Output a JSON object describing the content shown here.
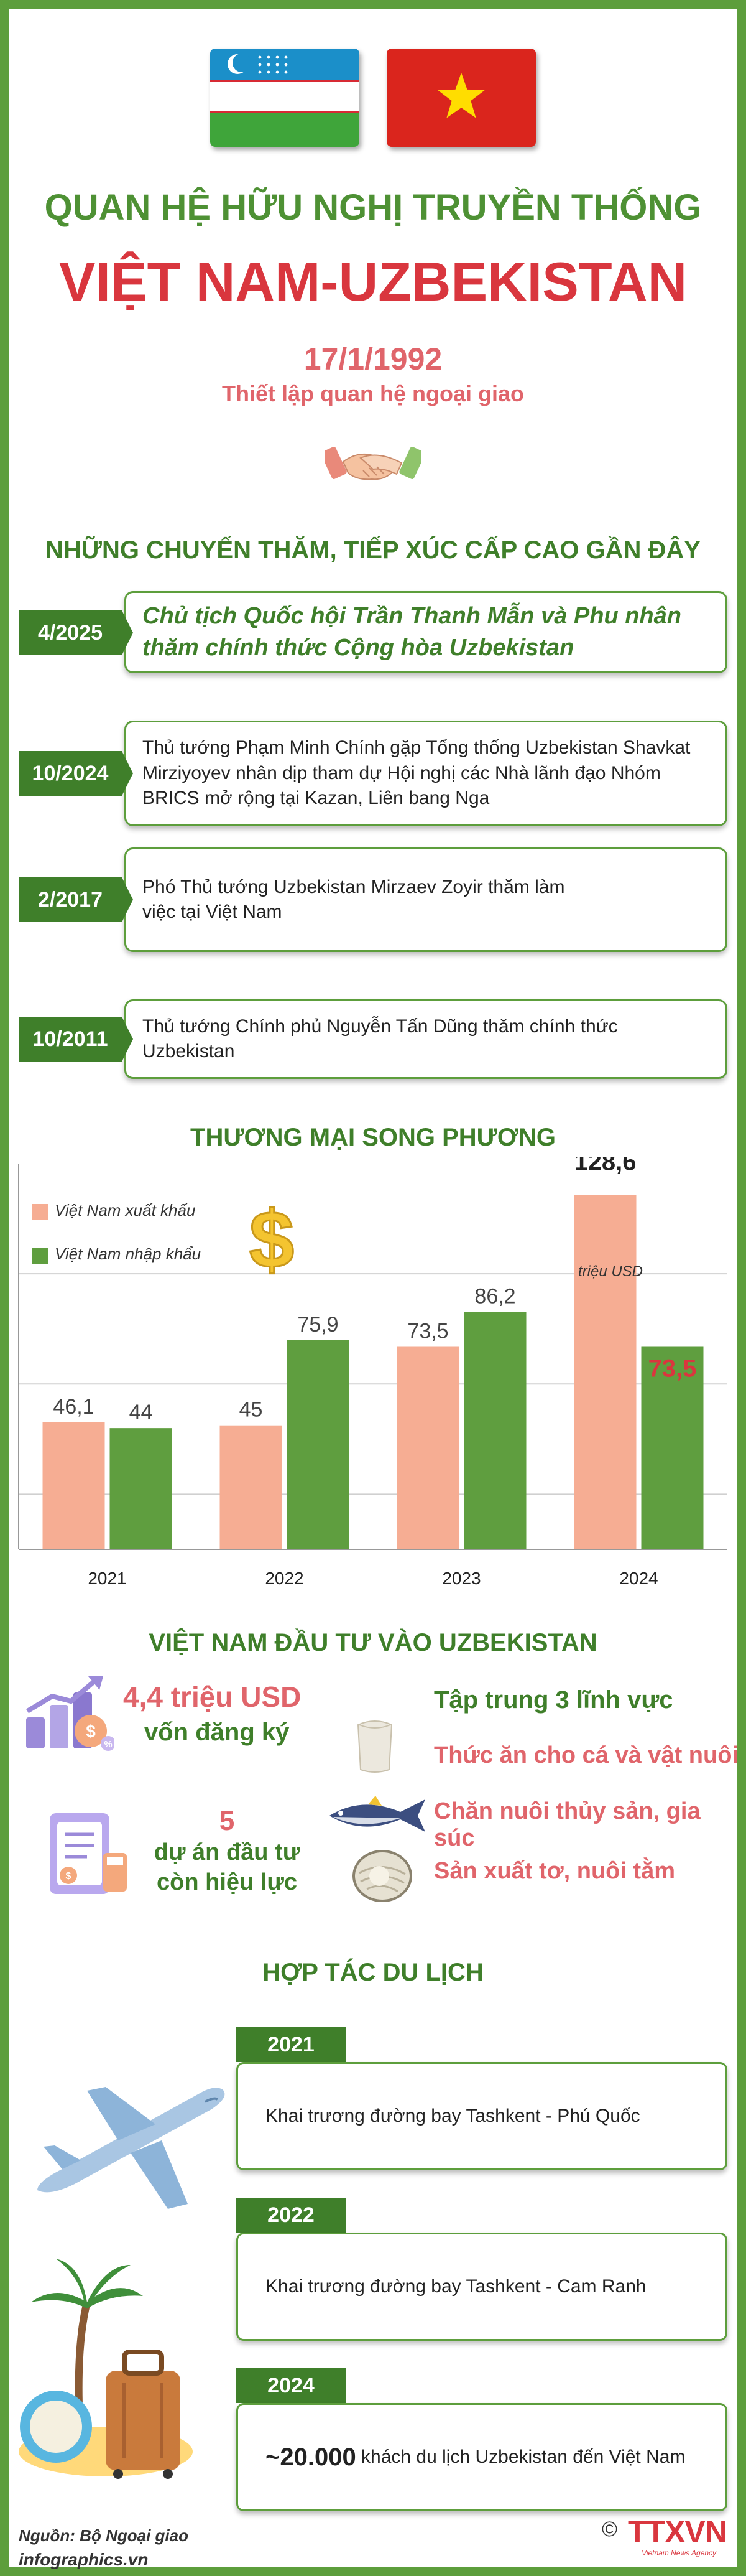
{
  "header": {
    "title_line1": "QUAN HỆ HỮU NGHỊ TRUYỀN THỐNG",
    "title_line2": "VIỆT NAM-UZBEKISTAN",
    "date": "17/1/1992",
    "subtitle": "Thiết lập quan hệ ngoại giao",
    "flags": [
      "uzbekistan-flag",
      "vietnam-flag"
    ]
  },
  "visits": {
    "title": "NHỮNG CHUYẾN THĂM, TIẾP XÚC CẤP CAO GẦN ĐÂY",
    "items": [
      {
        "date": "4/2025",
        "text": "Chủ tịch Quốc hội Trần Thanh Mẫn và Phu nhân thăm chính thức Cộng hòa Uzbekistan"
      },
      {
        "date": "10/2024",
        "text": "Thủ tướng Phạm Minh Chính gặp Tổng thống Uzbekistan Shavkat Mirziyoyev nhân dịp tham dự Hội nghị các Nhà lãnh đạo Nhóm BRICS mở rộng tại Kazan, Liên bang Nga"
      },
      {
        "date": "2/2017",
        "text": "Phó Thủ tướng Uzbekistan Mirzaev Zoyir  thăm làm việc tại Việt Nam"
      },
      {
        "date": "10/2011",
        "text": "Thủ tướng Chính phủ Nguyễn Tấn Dũng  thăm chính thức Uzbekistan"
      }
    ]
  },
  "trade": {
    "title": "THƯƠNG MẠI SONG PHƯƠNG",
    "unit": "triệu USD"
  },
  "chart_data": {
    "type": "bar",
    "title": "THƯƠNG MẠI SONG PHƯƠNG",
    "categories": [
      "2021",
      "2022",
      "2023",
      "2024"
    ],
    "series": [
      {
        "name": "Việt Nam xuất khẩu",
        "values": [
          46.1,
          45,
          73.5,
          128.6
        ],
        "labels": [
          "46,1",
          "45",
          "73,5",
          "128,6"
        ],
        "color": "#f6ad93"
      },
      {
        "name": "Việt Nam nhập khẩu",
        "values": [
          44,
          75.9,
          86.2,
          73.5
        ],
        "labels": [
          "44",
          "75,9",
          "86,2",
          "73,5"
        ],
        "color": "#5f9e3f"
      }
    ],
    "ylim": [
      0,
      140
    ],
    "grid": true,
    "legend": "top-left"
  },
  "investment": {
    "title": "VIỆT NAM ĐẦU TƯ VÀO UZBEKISTAN",
    "capital_value": "4,4 triệu USD",
    "capital_label": "vốn đăng ký",
    "projects_value": "5",
    "projects_label_1": "dự án đầu tư",
    "projects_label_2": "còn hiệu lực",
    "focus_title": "Tập trung 3 lĩnh vực",
    "fields": [
      "Thức ăn cho cá và vật nuôi",
      "Chăn nuôi thủy sản, gia súc",
      "Sản xuất tơ, nuôi tằm"
    ]
  },
  "tourism": {
    "title": "HỢP TÁC DU LỊCH",
    "items": [
      {
        "year": "2021",
        "text": "Khai trương đường bay Tashkent - Phú Quốc"
      },
      {
        "year": "2022",
        "text": "Khai trương đường bay Tashkent - Cam Ranh"
      },
      {
        "year": "2024",
        "bold": "~20.000",
        "text": " khách du lịch Uzbekistan đến Việt Nam"
      }
    ]
  },
  "footer": {
    "source": "Nguồn: Bộ Ngoại giao",
    "site": "infographics.vn",
    "logo": "TTXVN",
    "logo_sub": "Vietnam News Agency"
  }
}
